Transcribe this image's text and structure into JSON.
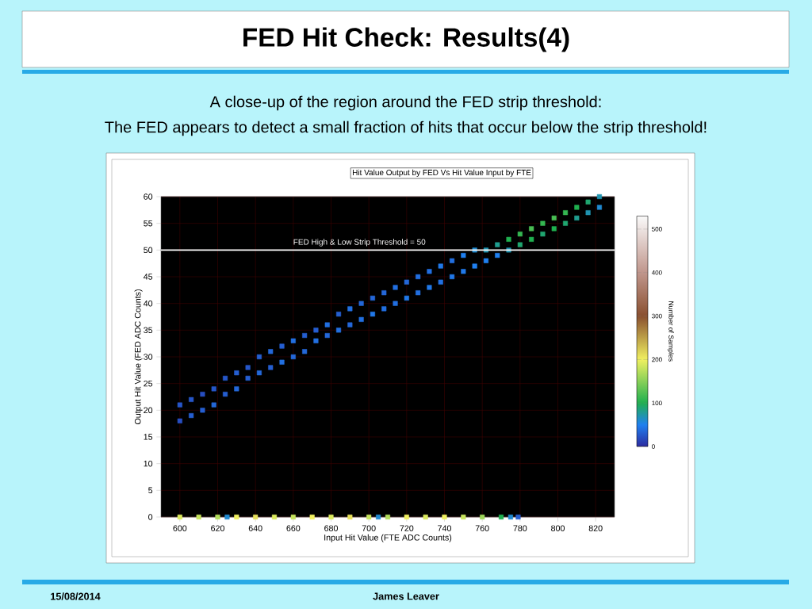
{
  "chart_data": {
    "type": "scatter",
    "title": "Hit Value Output by FED Vs Hit Value Input by FTE",
    "xlabel": "Input Hit Value (FTE ADC Counts)",
    "ylabel": "Output Hit Value (FED ADC Counts)",
    "clabel": "Number of Samples",
    "annotations": [
      "FED Hit Check: Results(4)",
      "A close-up of the region around the FED strip threshold:",
      "The FED appears to detect a small fraction of hits that occur below the strip threshold!",
      "15/08/2014",
      "James Leaver"
    ],
    "xlim": [
      590,
      830
    ],
    "ylim": [
      0,
      60
    ],
    "xticks": [
      600,
      620,
      640,
      660,
      680,
      700,
      720,
      740,
      760,
      780,
      800,
      820
    ],
    "yticks": [
      0,
      5,
      10,
      15,
      20,
      25,
      30,
      35,
      40,
      45,
      50,
      55,
      60
    ],
    "clim": [
      0,
      530
    ],
    "cticks": [
      0,
      100,
      200,
      300,
      400,
      500
    ],
    "grid": true,
    "marker": "square",
    "ref_lines": [
      {
        "axis": "y",
        "value": 50,
        "label": "FED High & Low Strip Threshold = 50",
        "color": "#ffffff"
      }
    ],
    "series": [
      {
        "x": [
          600,
          600,
          606,
          606,
          612,
          612,
          618,
          618,
          624,
          624,
          630,
          630,
          636,
          636,
          642,
          642,
          648,
          648,
          654,
          654,
          660,
          660,
          666,
          666,
          672,
          672,
          678,
          678,
          684,
          684,
          690,
          690,
          696,
          696,
          702,
          702,
          708,
          708,
          714,
          714,
          720,
          720,
          726,
          726,
          732,
          732,
          738,
          738,
          744,
          744,
          750,
          750,
          756,
          756,
          762,
          762,
          768,
          768,
          774,
          774,
          780,
          780,
          786,
          786,
          792,
          792,
          798,
          798,
          804,
          804,
          810,
          810,
          816,
          816,
          822,
          822,
          600,
          610,
          620,
          625,
          630,
          640,
          650,
          660,
          670,
          680,
          690,
          700,
          705,
          710,
          720,
          730,
          740,
          750,
          760,
          770,
          775,
          779
        ],
        "values": [
          18,
          21,
          19,
          22,
          20,
          23,
          21,
          24,
          23,
          26,
          24,
          27,
          26,
          28,
          27,
          30,
          28,
          31,
          29,
          32,
          30,
          33,
          31,
          34,
          33,
          35,
          34,
          36,
          35,
          38,
          36,
          39,
          37,
          40,
          38,
          41,
          39,
          42,
          40,
          43,
          41,
          44,
          42,
          45,
          43,
          46,
          44,
          47,
          45,
          48,
          46,
          49,
          47,
          50,
          48,
          50,
          49,
          51,
          50,
          52,
          51,
          53,
          52,
          54,
          53,
          55,
          54,
          56,
          55,
          57,
          56,
          58,
          57,
          59,
          58,
          60,
          0,
          0,
          0,
          0,
          0,
          0,
          0,
          0,
          0,
          0,
          0,
          0,
          0,
          0,
          0,
          0,
          0,
          0,
          0,
          0,
          0,
          0
        ],
        "cvalues": [
          20,
          25,
          30,
          25,
          30,
          20,
          35,
          25,
          30,
          25,
          35,
          30,
          30,
          25,
          35,
          30,
          30,
          35,
          40,
          30,
          35,
          40,
          35,
          30,
          40,
          30,
          35,
          40,
          40,
          30,
          35,
          40,
          40,
          35,
          45,
          35,
          40,
          35,
          40,
          40,
          45,
          35,
          40,
          40,
          45,
          40,
          40,
          45,
          45,
          40,
          45,
          50,
          50,
          60,
          50,
          70,
          50,
          80,
          70,
          100,
          90,
          110,
          100,
          120,
          90,
          110,
          100,
          120,
          90,
          110,
          80,
          100,
          70,
          90,
          60,
          70,
          190,
          180,
          170,
          60,
          200,
          210,
          190,
          180,
          200,
          190,
          210,
          180,
          60,
          170,
          200,
          190,
          200,
          180,
          160,
          100,
          60,
          30
        ]
      }
    ]
  }
}
